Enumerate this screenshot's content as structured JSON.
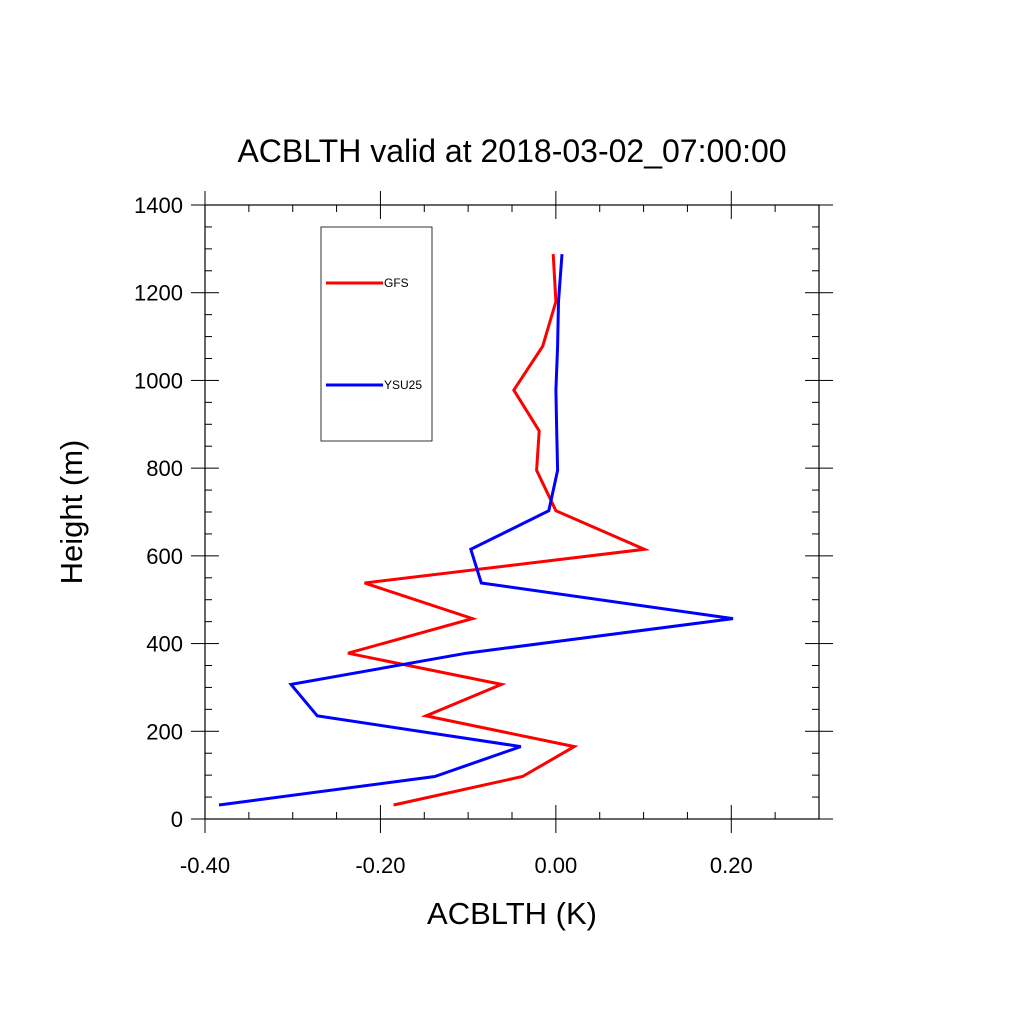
{
  "chart_data": {
    "type": "line",
    "title": "ACBLTH valid at 2018-03-02_07:00:00",
    "xlabel": "ACBLTH (K)",
    "ylabel": "Height (m)",
    "xlim": [
      -0.4,
      0.3
    ],
    "ylim": [
      0,
      1400
    ],
    "xticks": [
      -0.4,
      -0.2,
      0.0,
      0.2
    ],
    "xtick_labels": [
      "-0.40",
      "-0.20",
      "0.00",
      "0.20"
    ],
    "yticks": [
      0,
      200,
      400,
      600,
      800,
      1000,
      1200,
      1400
    ],
    "ytick_labels": [
      "0",
      "200",
      "400",
      "600",
      "800",
      "1000",
      "1200",
      "1400"
    ],
    "grid": false,
    "legend_position": "top-left",
    "series": [
      {
        "name": "GFS",
        "color": "#ff0000",
        "points": [
          [
            -0.185,
            32
          ],
          [
            -0.038,
            97
          ],
          [
            0.021,
            165
          ],
          [
            -0.148,
            235
          ],
          [
            -0.062,
            307
          ],
          [
            -0.237,
            378
          ],
          [
            -0.095,
            457
          ],
          [
            -0.218,
            538
          ],
          [
            0.101,
            615
          ],
          [
            0.0,
            703
          ],
          [
            -0.022,
            795
          ],
          [
            -0.019,
            885
          ],
          [
            -0.048,
            978
          ],
          [
            -0.015,
            1078
          ],
          [
            0.0,
            1180
          ],
          [
            -0.003,
            1288
          ]
        ]
      },
      {
        "name": "YSU25",
        "color": "#0000ff",
        "points": [
          [
            -0.384,
            32
          ],
          [
            -0.138,
            97
          ],
          [
            -0.04,
            165
          ],
          [
            -0.272,
            235
          ],
          [
            -0.302,
            307
          ],
          [
            -0.102,
            378
          ],
          [
            0.202,
            457
          ],
          [
            -0.085,
            538
          ],
          [
            -0.097,
            615
          ],
          [
            -0.008,
            703
          ],
          [
            0.002,
            795
          ],
          [
            0.001,
            885
          ],
          [
            0.0,
            978
          ],
          [
            0.002,
            1078
          ],
          [
            0.003,
            1180
          ],
          [
            0.007,
            1288
          ]
        ]
      }
    ]
  }
}
